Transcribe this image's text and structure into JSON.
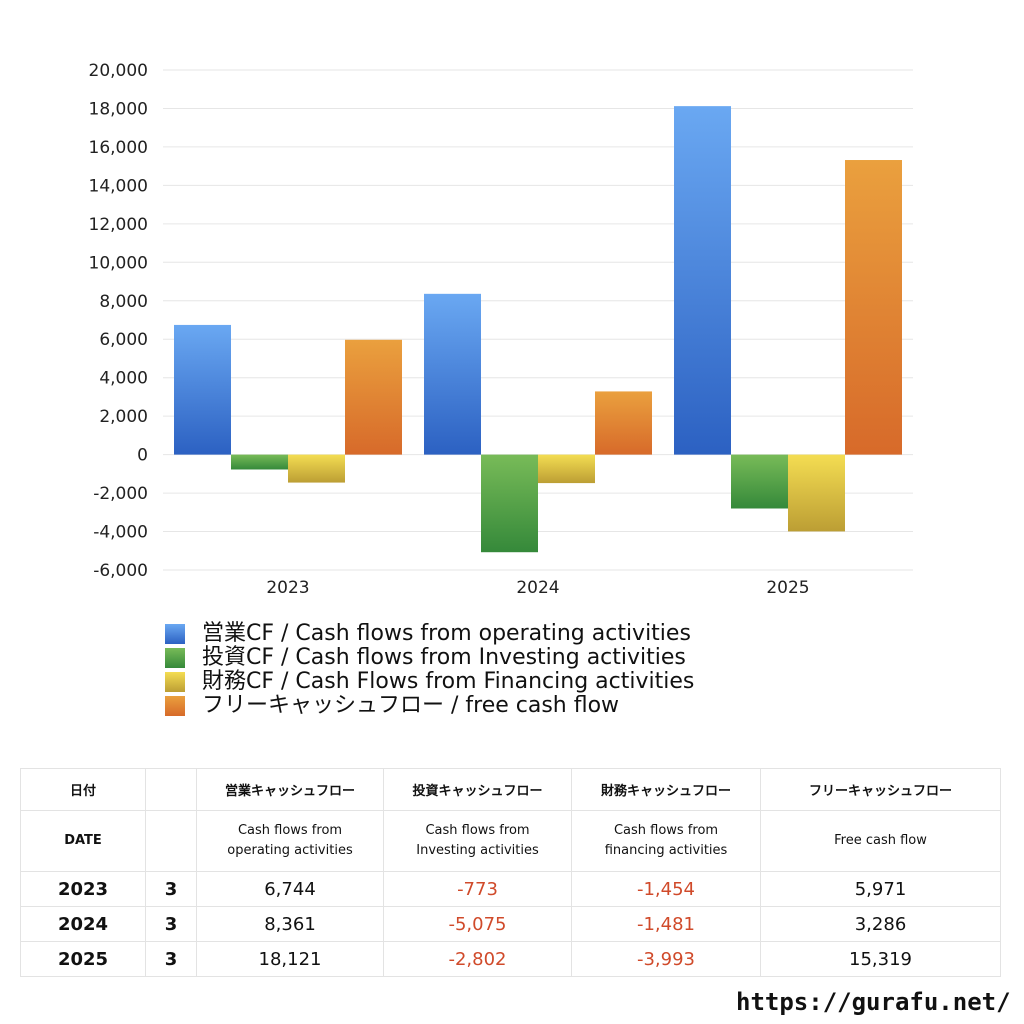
{
  "chart_data": {
    "type": "bar",
    "categories": [
      "2023",
      "2024",
      "2025"
    ],
    "ylim": [
      -6000,
      20000
    ],
    "yticks": [
      20000,
      18000,
      16000,
      14000,
      12000,
      10000,
      8000,
      6000,
      4000,
      2000,
      0,
      -2000,
      -4000,
      -6000
    ],
    "ytick_labels": [
      "20,000",
      "18,000",
      "16,000",
      "14,000",
      "12,000",
      "10,000",
      "8,000",
      "6,000",
      "4,000",
      "2,000",
      "0",
      "-2,000",
      "-4,000",
      "-6,000"
    ],
    "grid": true,
    "legend_position": "bottom-left",
    "series": [
      {
        "name": "営業CF / Cash flows from operating activities",
        "values": [
          6744,
          8361,
          18121
        ],
        "color_top": "#6aa8f2",
        "color_bottom": "#2c61c2"
      },
      {
        "name": "投資CF / Cash flows from Investing activities",
        "values": [
          -773,
          -5075,
          -2802
        ],
        "color_top": "#78bb58",
        "color_bottom": "#35893a"
      },
      {
        "name": "財務CF / Cash Flows from Financing activities",
        "values": [
          -1454,
          -1481,
          -3993
        ],
        "color_top": "#f4dd52",
        "color_bottom": "#bc9e34"
      },
      {
        "name": "フリーキャッシュフロー / free cash flow",
        "values": [
          5971,
          3286,
          15319
        ],
        "color_top": "#eaa03e",
        "color_bottom": "#d76a2a"
      }
    ]
  },
  "table": {
    "headers_jp": {
      "date": "日付",
      "operating": "営業キャッシュフロー",
      "investing": "投資キャッシュフロー",
      "financing": "財務キャッシュフロー",
      "free": "フリーキャッシュフロー"
    },
    "headers_en": {
      "date": "DATE",
      "operating_1": "Cash flows from",
      "operating_2": "operating activities",
      "investing_1": "Cash flows from",
      "investing_2": "Investing activities",
      "financing_1": "Cash flows from",
      "financing_2": "financing activities",
      "free": "Free cash flow"
    },
    "rows": [
      {
        "year": "2023",
        "month": "3",
        "operating": "6,744",
        "investing": "-773",
        "financing": "-1,454",
        "free": "5,971"
      },
      {
        "year": "2024",
        "month": "3",
        "operating": "8,361",
        "investing": "-5,075",
        "financing": "-1,481",
        "free": "3,286"
      },
      {
        "year": "2025",
        "month": "3",
        "operating": "18,121",
        "investing": "-2,802",
        "financing": "-3,993",
        "free": "15,319"
      }
    ]
  },
  "footer": {
    "url": "https://gurafu.net/"
  }
}
